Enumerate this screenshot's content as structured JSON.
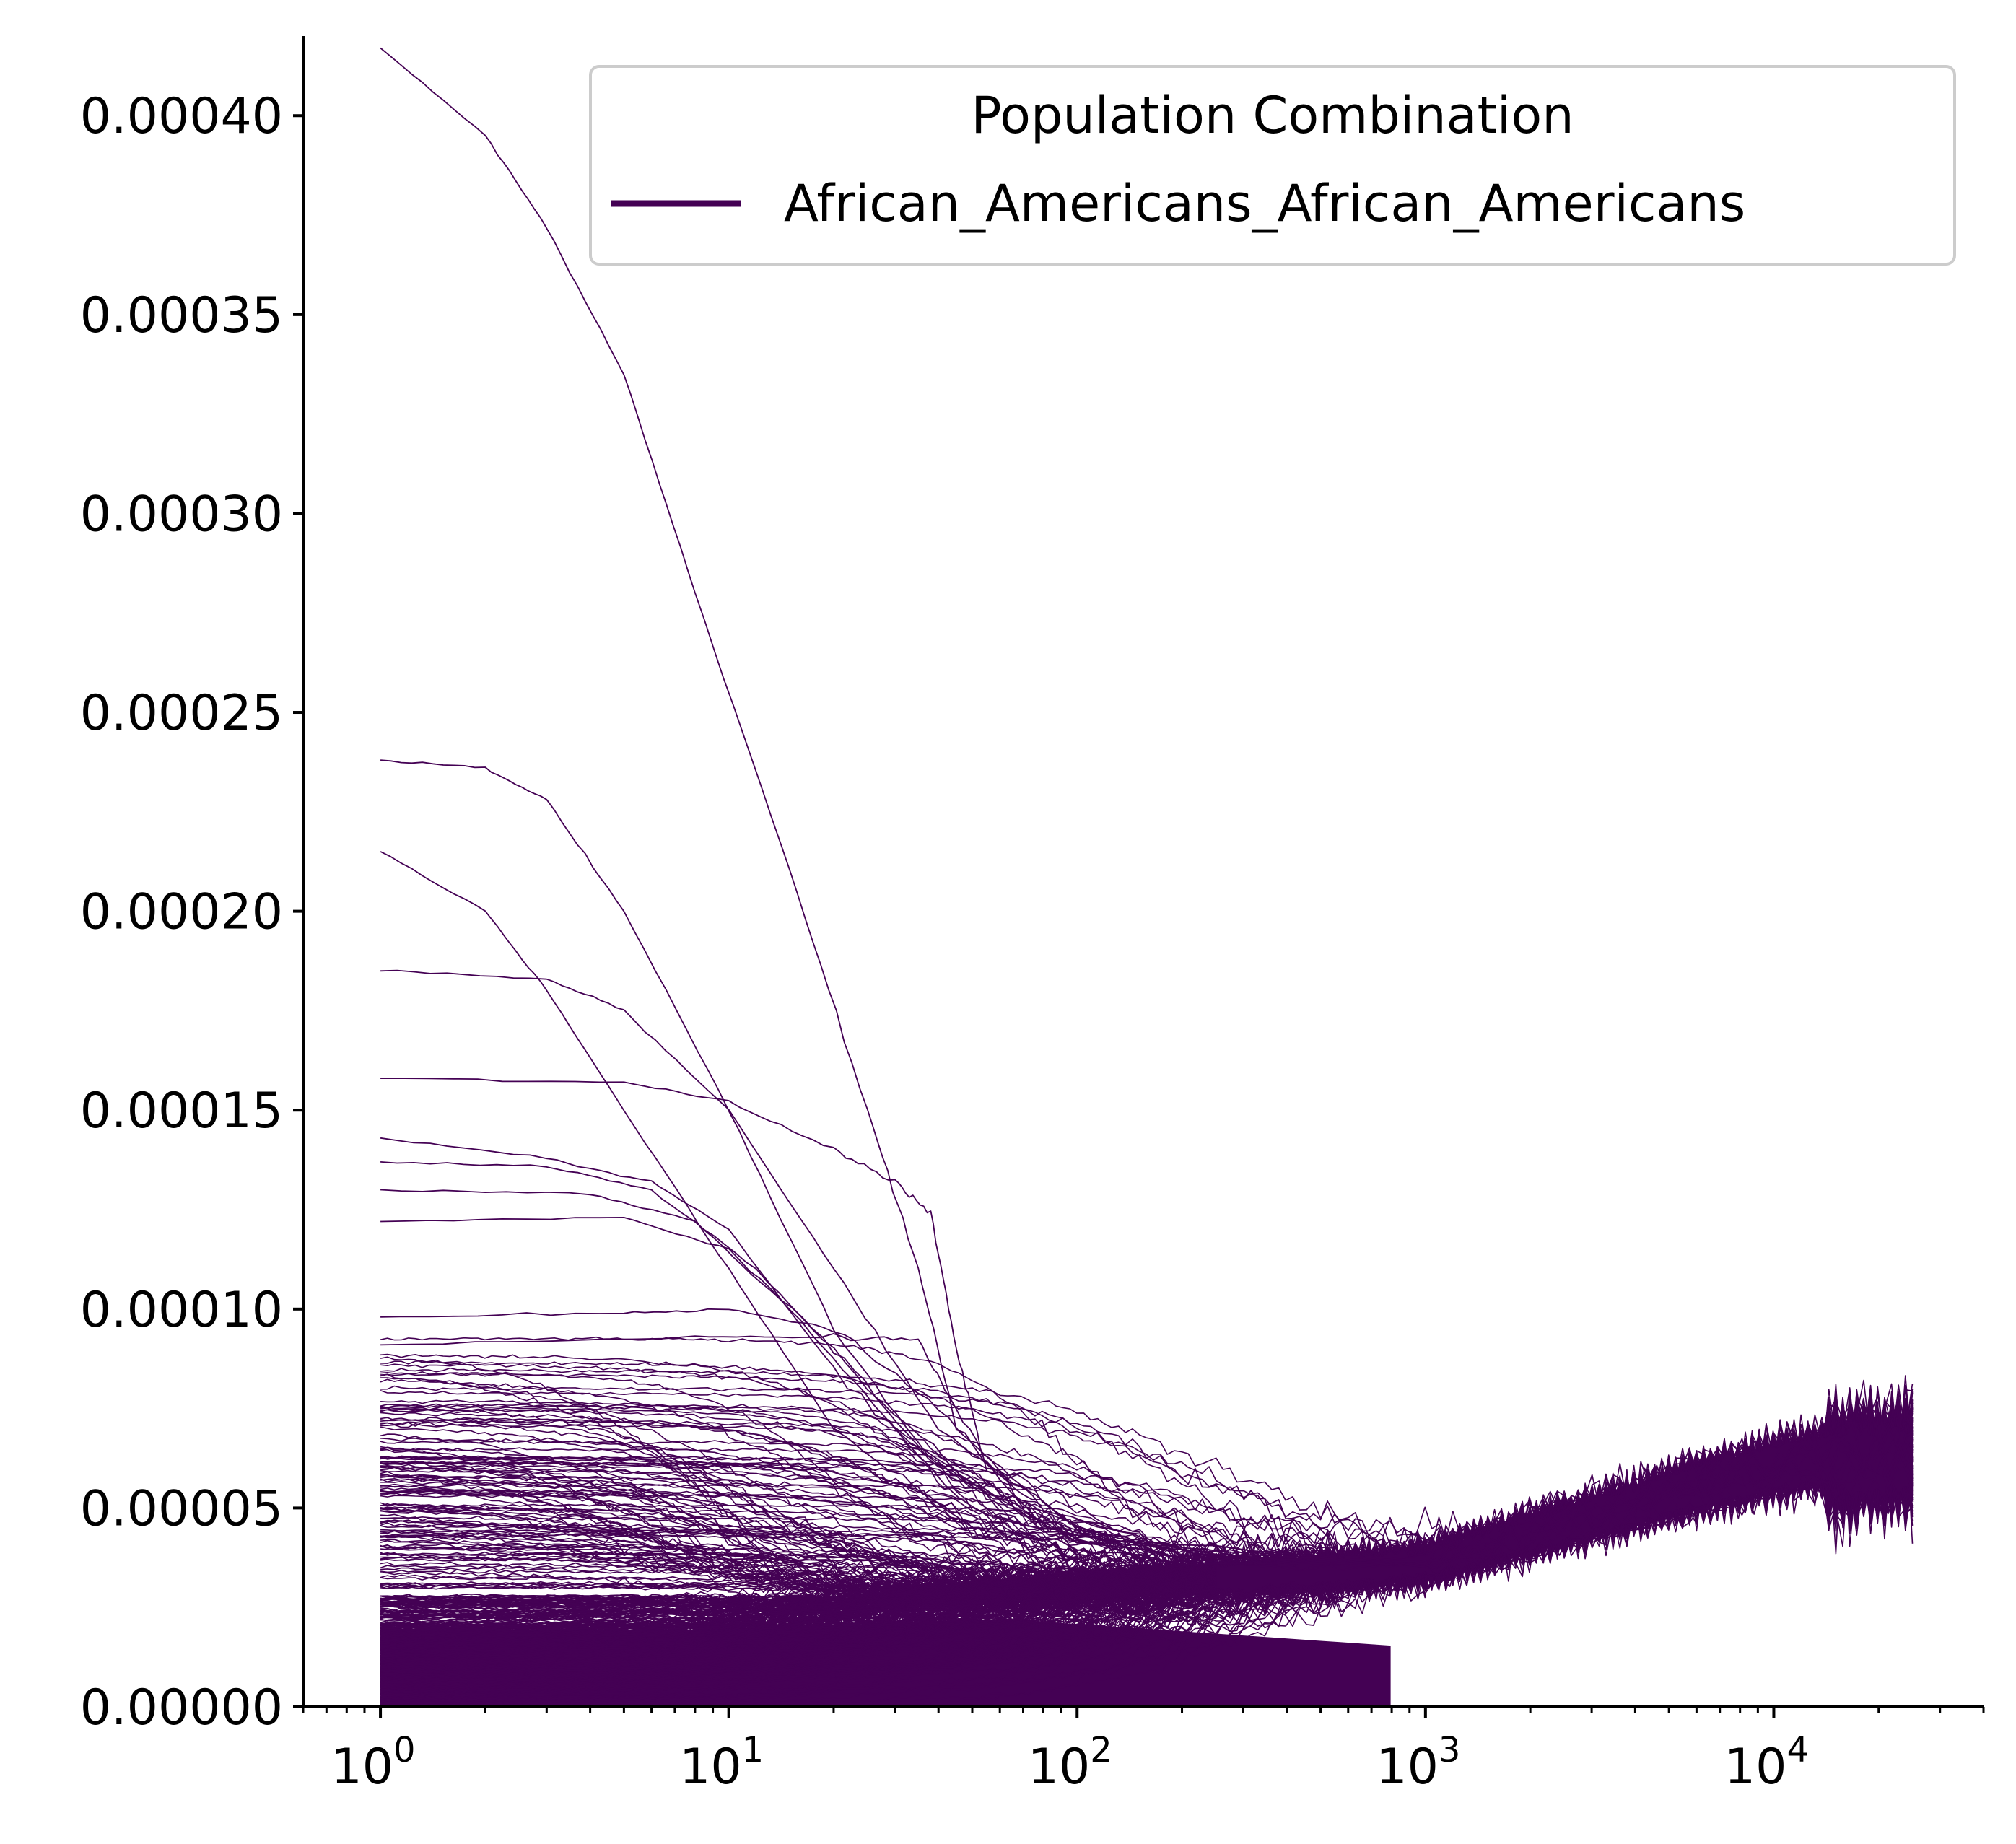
{
  "chart_data": {
    "type": "line",
    "title": "",
    "xlabel": "",
    "ylabel": "",
    "x_scale": "log",
    "xlim": [
      0.6,
      40000
    ],
    "ylim": [
      0,
      0.00042
    ],
    "grid": false,
    "line_color": "#440154",
    "y_ticks": [
      "0.00000",
      "0.00005",
      "0.00010",
      "0.00015",
      "0.00020",
      "0.00025",
      "0.00030",
      "0.00035",
      "0.00040"
    ],
    "x_ticks": [
      {
        "value": 1,
        "base": "10",
        "exp": "0"
      },
      {
        "value": 10,
        "base": "10",
        "exp": "1"
      },
      {
        "value": 100,
        "base": "10",
        "exp": "2"
      },
      {
        "value": 1000,
        "base": "10",
        "exp": "3"
      },
      {
        "value": 10000,
        "base": "10",
        "exp": "4"
      }
    ],
    "x_range_of_lines": [
      1,
      25000
    ],
    "legend": {
      "title": "Population Combination",
      "placement": "top-right",
      "entries": [
        {
          "label": "African_Americans_African_Americans",
          "color": "#440154"
        }
      ]
    },
    "series_description": "hundreds of overlapping lines sharing one color",
    "highlighted_series": [
      {
        "start": 0.000417,
        "points": [
          [
            1,
            0.000417
          ],
          [
            2,
            0.000395
          ],
          [
            3,
            0.000372
          ],
          [
            5,
            0.000335
          ],
          [
            8,
            0.00028
          ],
          [
            15,
            0.00021
          ],
          [
            25,
            0.00015
          ],
          [
            35,
            0.00011
          ],
          [
            45,
            7e-05
          ],
          [
            80,
            4.5e-05
          ],
          [
            200,
            3.8e-05
          ],
          [
            1000,
            3.7e-05
          ]
        ]
      },
      {
        "start": 0.000238,
        "points": [
          [
            1,
            0.000238
          ],
          [
            2,
            0.000236
          ],
          [
            3,
            0.000228
          ],
          [
            5,
            0.0002
          ],
          [
            10,
            0.00015
          ],
          [
            20,
            9.5e-05
          ],
          [
            40,
            6e-05
          ],
          [
            100,
            4.2e-05
          ],
          [
            400,
            3.5e-05
          ],
          [
            1000,
            3.6e-05
          ]
        ]
      },
      {
        "start": 0.000215,
        "points": [
          [
            1,
            0.000215
          ],
          [
            2,
            0.0002
          ],
          [
            3,
            0.00018
          ],
          [
            5,
            0.00015
          ],
          [
            10,
            0.00011
          ],
          [
            20,
            7e-05
          ],
          [
            50,
            4.5e-05
          ],
          [
            200,
            3.6e-05
          ],
          [
            1000,
            3.7e-05
          ]
        ]
      },
      {
        "start": 0.000185,
        "points": [
          [
            1,
            0.000185
          ],
          [
            3,
            0.000183
          ],
          [
            5,
            0.000175
          ],
          [
            10,
            0.00015
          ],
          [
            20,
            0.00011
          ],
          [
            40,
            7e-05
          ],
          [
            100,
            4.5e-05
          ],
          [
            400,
            3.5e-05
          ],
          [
            1000,
            3.6e-05
          ]
        ]
      },
      {
        "start": 0.000158,
        "points": [
          [
            1,
            0.000158
          ],
          [
            5,
            0.000157
          ],
          [
            10,
            0.000152
          ],
          [
            20,
            0.00014
          ],
          [
            30,
            0.000132
          ],
          [
            38,
            0.000124
          ],
          [
            45,
            9e-05
          ],
          [
            55,
            6e-05
          ],
          [
            100,
            4.5e-05
          ],
          [
            300,
            3.6e-05
          ],
          [
            1000,
            3.6e-05
          ]
        ]
      },
      {
        "start": 0.000143,
        "points": [
          [
            1,
            0.000143
          ],
          [
            3,
            0.000138
          ],
          [
            6,
            0.000132
          ],
          [
            10,
            0.00012
          ],
          [
            20,
            8.5e-05
          ],
          [
            50,
            5e-05
          ],
          [
            150,
            3.8e-05
          ],
          [
            1000,
            3.6e-05
          ]
        ]
      },
      {
        "start": 0.000137,
        "points": [
          [
            1,
            0.000137
          ],
          [
            3,
            0.000136
          ],
          [
            6,
            0.00013
          ],
          [
            12,
            0.00011
          ],
          [
            25,
            8e-05
          ],
          [
            60,
            5e-05
          ],
          [
            200,
            3.7e-05
          ],
          [
            1000,
            3.6e-05
          ]
        ]
      },
      {
        "start": 0.00013,
        "points": [
          [
            1,
            0.00013
          ],
          [
            4,
            0.000129
          ],
          [
            8,
            0.000122
          ],
          [
            15,
            0.0001
          ],
          [
            30,
            7e-05
          ],
          [
            80,
            4.5e-05
          ],
          [
            300,
            3.6e-05
          ],
          [
            1000,
            3.6e-05
          ]
        ]
      },
      {
        "start": 0.000122,
        "points": [
          [
            1,
            0.000122
          ],
          [
            5,
            0.000123
          ],
          [
            10,
            0.000115
          ],
          [
            20,
            9e-05
          ],
          [
            40,
            6e-05
          ],
          [
            100,
            4.2e-05
          ],
          [
            1000,
            3.6e-05
          ]
        ]
      },
      {
        "start": 9.8e-05,
        "points": [
          [
            1,
            9.8e-05
          ],
          [
            5,
            9.9e-05
          ],
          [
            10,
            0.0001
          ],
          [
            20,
            9.5e-05
          ],
          [
            40,
            7.5e-05
          ],
          [
            80,
            5e-05
          ],
          [
            200,
            4e-05
          ],
          [
            1000,
            3.6e-05
          ]
        ]
      },
      {
        "start": 9.1e-05,
        "points": [
          [
            1,
            9.1e-05
          ],
          [
            8,
            9.3e-05
          ],
          [
            20,
            9.3e-05
          ],
          [
            35,
            9.2e-05
          ],
          [
            45,
            7.5e-05
          ],
          [
            70,
            5e-05
          ],
          [
            200,
            4e-05
          ],
          [
            1000,
            3.6e-05
          ]
        ]
      }
    ]
  }
}
